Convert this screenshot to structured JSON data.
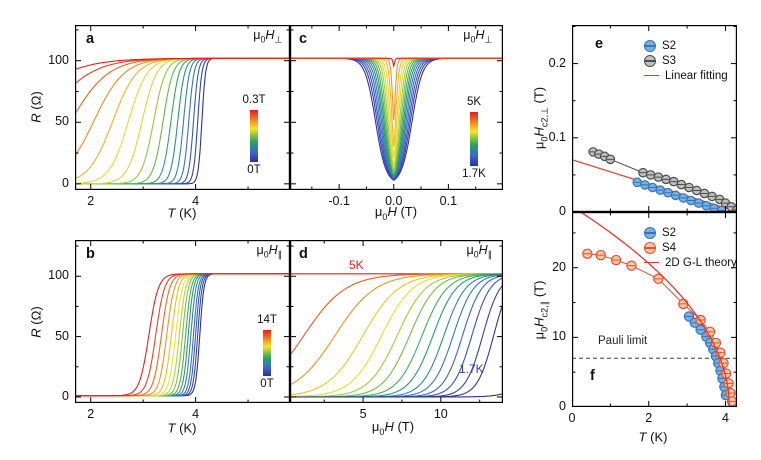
{
  "labels": {
    "t": "T",
    "t_unit": " (K)",
    "r": "R",
    "r_unit": " (Ω)",
    "mu": "μ",
    "zero": "0",
    "H": "H",
    "h_unit": " (T)",
    "perp": "⊥",
    "par": "∥",
    "e_sub": "c2,⊥",
    "f_sub": "c2,∥"
  },
  "colors": {
    "rainbow": [
      "#312f9f",
      "#3a6ccc",
      "#27a15f",
      "#8cc63f",
      "#f2e52e",
      "#f7a21f",
      "#ec5a20",
      "#e2201c"
    ],
    "rainbow_pos": [
      0,
      0.2,
      0.38,
      0.52,
      0.64,
      0.76,
      0.88,
      1
    ],
    "s2_fill": "#74b2e4",
    "s2_stroke": "#3a72b5",
    "s3_fill": "#bfbfbf",
    "s3_stroke": "#4d4d4d",
    "s4_fill": "#f9c8a2",
    "s4_stroke": "#df5233",
    "fit": "#e8392f",
    "dash": "#3c3c3c",
    "annot_red": "#e2201c",
    "annot_blue": "#3b3bb0"
  },
  "chart_data": {
    "a": {
      "panel": "a",
      "type": "line",
      "kind": "rt",
      "field_label": "μ0H⊥",
      "xlim": [
        1.7,
        5.8
      ],
      "ylim": [
        -5,
        129
      ],
      "rn": 102,
      "r0": 0,
      "xticks": {
        "major": [
          2,
          4
        ],
        "minor": [
          3,
          5
        ],
        "labels": [
          "2",
          "4"
        ]
      },
      "yticks": {
        "major": [
          0,
          50,
          100
        ],
        "minor": [
          25,
          75,
          125
        ],
        "labels": [
          "0",
          "50",
          "100"
        ]
      },
      "colorbar": {
        "top": "0.3T",
        "bottom": "0T"
      },
      "fields_T": [
        0,
        0.02,
        0.04,
        0.06,
        0.08,
        0.1,
        0.12,
        0.14,
        0.16,
        0.18,
        0.2,
        0.22,
        0.24,
        0.26,
        0.28,
        0.3
      ],
      "tc": [
        4.12,
        4.04,
        3.96,
        3.87,
        3.77,
        3.66,
        3.53,
        3.38,
        3.2,
        2.98,
        2.72,
        2.42,
        2.06,
        1.62,
        1.1,
        0.5
      ],
      "w": [
        0.035,
        0.04,
        0.045,
        0.05,
        0.057,
        0.066,
        0.078,
        0.095,
        0.115,
        0.14,
        0.18,
        0.23,
        0.29,
        0.36,
        0.44,
        0.52
      ]
    },
    "c": {
      "panel": "c",
      "type": "line",
      "kind": "dip",
      "field_label": "μ0H⊥",
      "xlim": [
        -0.19,
        0.2
      ],
      "ylim": [
        -5,
        129
      ],
      "rn": 102,
      "xticks": {
        "major": [
          -0.1,
          0,
          0.1
        ],
        "minor": [
          -0.15,
          -0.05,
          0.05,
          0.15
        ],
        "labels": [
          "-0.1",
          "0.0",
          "0.1"
        ]
      },
      "yticks": {
        "major": [
          0,
          50,
          100
        ],
        "minor": [
          25,
          75,
          125
        ],
        "labels": []
      },
      "colorbar": {
        "top": "5K",
        "bottom": "1.7K"
      },
      "temps_K": [
        1.7,
        1.9,
        2.1,
        2.3,
        2.5,
        2.7,
        2.9,
        3.1,
        3.3,
        3.5,
        3.7,
        3.9,
        4.1,
        4.3,
        5.0
      ],
      "h0": [
        0.0335,
        0.0305,
        0.0278,
        0.0252,
        0.0227,
        0.0203,
        0.018,
        0.0157,
        0.0133,
        0.0108,
        0.0082,
        0.0056,
        0.0032,
        0.0014,
        0.0004
      ],
      "w": [
        0.0095,
        0.009,
        0.0085,
        0.008,
        0.0075,
        0.007,
        0.0065,
        0.006,
        0.0055,
        0.005,
        0.0045,
        0.004,
        0.0032,
        0.0022,
        0.0012
      ],
      "depth": [
        102,
        102,
        102,
        102,
        102,
        102,
        102,
        102,
        102,
        102,
        102,
        102,
        100,
        80,
        12
      ]
    },
    "b": {
      "panel": "b",
      "type": "line",
      "kind": "rt",
      "field_label": "μ0H∥",
      "xlim": [
        1.7,
        5.8
      ],
      "ylim": [
        -5,
        130
      ],
      "rn": 102,
      "r0": 1,
      "xticks": {
        "major": [
          2,
          4
        ],
        "minor": [
          3,
          5
        ],
        "labels": [
          "2",
          "4"
        ]
      },
      "yticks": {
        "major": [
          0,
          50,
          100
        ],
        "minor": [
          25,
          75,
          125
        ],
        "labels": [
          "0",
          "50",
          "100"
        ]
      },
      "colorbar": {
        "top": "14T",
        "bottom": "0T"
      },
      "fields_T": [
        0,
        1,
        2,
        3,
        4,
        5,
        6,
        7,
        8,
        9,
        10,
        11,
        12,
        13,
        14
      ],
      "tc": [
        4.08,
        4.04,
        4.0,
        3.96,
        3.91,
        3.86,
        3.81,
        3.75,
        3.69,
        3.62,
        3.54,
        3.45,
        3.35,
        3.24,
        3.11
      ],
      "w": [
        0.04,
        0.042,
        0.044,
        0.046,
        0.048,
        0.05,
        0.053,
        0.056,
        0.06,
        0.064,
        0.068,
        0.073,
        0.078,
        0.084,
        0.09
      ]
    },
    "d": {
      "panel": "d",
      "type": "line",
      "kind": "rise",
      "field_label": "μ0H∥",
      "xlim": [
        0.3,
        14
      ],
      "ylim": [
        -5,
        130
      ],
      "rn": 102,
      "r0": 0,
      "xticks": {
        "major": [
          5,
          10
        ],
        "minor": [
          2.5,
          7.5,
          12.5
        ],
        "labels": [
          "5",
          "10"
        ]
      },
      "yticks": {
        "major": [
          0,
          50,
          100
        ],
        "minor": [
          25,
          75,
          125
        ],
        "labels": []
      },
      "label_high": "5K",
      "label_low": "1.7K",
      "temps_K": [
        5.0,
        4.6,
        4.3,
        4.0,
        3.75,
        3.5,
        3.3,
        3.1,
        2.9,
        2.7,
        2.5,
        2.3,
        2.1,
        1.9,
        1.75,
        1.7
      ],
      "h0": [
        -30,
        1.2,
        3.2,
        5.0,
        6.2,
        7.2,
        8.0,
        8.8,
        9.5,
        10.2,
        10.8,
        11.4,
        12.0,
        12.7,
        13.4,
        16.5
      ],
      "w": [
        3,
        1.35,
        1.3,
        1.15,
        1.0,
        0.92,
        0.85,
        0.8,
        0.75,
        0.7,
        0.66,
        0.62,
        0.59,
        0.56,
        0.53,
        0.7
      ]
    },
    "e": {
      "panel": "e",
      "type": "scatter",
      "kind": "hc2",
      "xlim": [
        0,
        4.3
      ],
      "ylim": [
        0,
        0.252
      ],
      "xticks": {
        "major": [
          0,
          2,
          4
        ],
        "minor": [
          1,
          3
        ],
        "labels": []
      },
      "yticks": {
        "major": [
          0,
          0.1,
          0.2
        ],
        "minor": [
          0.05,
          0.15,
          0.25
        ],
        "labels": [
          "0",
          "0.1",
          "0.2"
        ]
      },
      "legend": [
        {
          "label": "S2",
          "marker": "s2"
        },
        {
          "label": "S3",
          "marker": "s3"
        },
        {
          "label": "Linear fitting",
          "marker": "line"
        }
      ],
      "fit": {
        "x0": 0,
        "y0": 0.0705,
        "x1": 4.33,
        "y1": 0
      },
      "series": [
        {
          "name": "S3",
          "style": "s3",
          "x": [
            0.55,
            0.7,
            0.85,
            1.0,
            1.85,
            2.05,
            2.25,
            2.45,
            2.65,
            2.85,
            3.05,
            3.25,
            3.45,
            3.65,
            3.85,
            4.0,
            4.15,
            4.3
          ],
          "y": [
            0.081,
            0.078,
            0.075,
            0.071,
            0.053,
            0.05,
            0.047,
            0.044,
            0.041,
            0.037,
            0.033,
            0.029,
            0.025,
            0.021,
            0.017,
            0.012,
            0.007,
            0.003
          ]
        },
        {
          "name": "S2",
          "style": "s2",
          "x": [
            1.7,
            1.9,
            2.1,
            2.3,
            2.5,
            2.7,
            2.9,
            3.1,
            3.3,
            3.5,
            3.7,
            3.9
          ],
          "y": [
            0.04,
            0.0365,
            0.033,
            0.0295,
            0.026,
            0.0225,
            0.019,
            0.0155,
            0.012,
            0.0085,
            0.005,
            0.002
          ]
        }
      ]
    },
    "f": {
      "panel": "f",
      "type": "scatter",
      "kind": "hc2",
      "xlim": [
        0,
        4.3
      ],
      "ylim": [
        0,
        28
      ],
      "xticks": {
        "major": [
          0,
          2,
          4
        ],
        "minor": [
          1,
          3
        ],
        "labels": [
          "0",
          "2",
          "4"
        ]
      },
      "yticks": {
        "major": [
          0,
          10,
          20
        ],
        "minor": [
          5,
          15,
          25
        ],
        "labels": [
          "0",
          "10",
          "20"
        ]
      },
      "legend": [
        {
          "label": "S2",
          "marker": "s2"
        },
        {
          "label": "S4",
          "marker": "s4"
        },
        {
          "label": "2D G-L theory",
          "marker": "line"
        }
      ],
      "gl": {
        "h0": 28.8,
        "tc": 4.1
      },
      "pauli_limit": 7,
      "pauli_label": "Pauli limit",
      "series": [
        {
          "name": "S2",
          "style": "s2",
          "x": [
            3.05,
            3.2,
            3.35,
            3.5,
            3.6,
            3.68,
            3.75,
            3.81,
            3.87,
            3.92,
            3.97,
            4.01
          ],
          "y": [
            13.0,
            12.1,
            11.1,
            10.1,
            9.2,
            8.3,
            7.3,
            6.3,
            5.2,
            4.1,
            2.9,
            1.7
          ]
        },
        {
          "name": "S4",
          "style": "s4",
          "x": [
            0.4,
            0.75,
            1.15,
            1.55,
            2.25,
            2.9,
            3.35,
            3.6,
            3.75,
            3.87,
            3.95,
            4.02,
            4.08,
            4.13,
            4.17
          ],
          "y": [
            22.0,
            21.8,
            21.1,
            20.3,
            18.4,
            14.8,
            12.5,
            10.8,
            9.2,
            7.8,
            6.3,
            4.8,
            3.4,
            2.0,
            0.8
          ]
        }
      ]
    }
  }
}
